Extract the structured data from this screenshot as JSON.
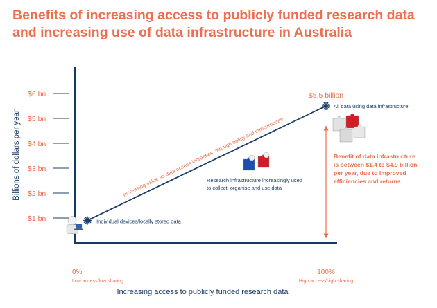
{
  "title": "Benefits of increasing access to publicly funded research data and increasing use of data infrastructure in Australia",
  "colors": {
    "accent": "#ec6f4f",
    "navy": "#1d3c68",
    "axis": "#173a64"
  },
  "chart_data": {
    "type": "line",
    "title": "Benefits of increasing access to publicly funded research data and increasing use of data infrastructure in Australia",
    "xlabel": "Increasing access to publicly funded research data",
    "ylabel": "Billions of dollars per year",
    "xlim": [
      0,
      100
    ],
    "ylim": [
      0,
      6.5
    ],
    "x_ticks": [
      {
        "value": 0,
        "label": "0%",
        "sublabel": "Low access/low sharing"
      },
      {
        "value": 100,
        "label": "100%",
        "sublabel": "High access/high sharing"
      }
    ],
    "y_ticks": [
      {
        "value": 1,
        "label": "$1 bn"
      },
      {
        "value": 2,
        "label": "$2 bn"
      },
      {
        "value": 3,
        "label": "$3 bn"
      },
      {
        "value": 4,
        "label": "$4 bn"
      },
      {
        "value": 5,
        "label": "$5 bn"
      },
      {
        "value": 6,
        "label": "$6 bn"
      }
    ],
    "grid": false,
    "series": [
      {
        "points": [
          {
            "x": 5,
            "y": 0.9
          },
          {
            "x": 100,
            "y": 5.5
          }
        ]
      }
    ],
    "points": [
      {
        "x": 5,
        "y": 0.9,
        "label": "Individual devices/locally stored data",
        "icon": "person-laptop-icon"
      },
      {
        "x": 65,
        "y": 2.3,
        "label_lines": [
          "Research infrastructure increasingly used",
          "to collect, organise and use data"
        ],
        "icon": "puzzle-figures-icon"
      },
      {
        "x": 100,
        "y": 5.5,
        "label": "All data using data infrastructure",
        "value_label": "$5.5 billion",
        "icon": "puzzle-pieces-icon"
      }
    ],
    "trend_annotation": "Increasing value as data access increases, through policy and infrastructure",
    "range_annotation": {
      "from": 0,
      "to": 5.5,
      "lines": [
        "Benefit of data infrastructure",
        "is between $1.4 to $4.9 billion",
        "per year, due to improved",
        "efficiencies and returns"
      ]
    }
  }
}
